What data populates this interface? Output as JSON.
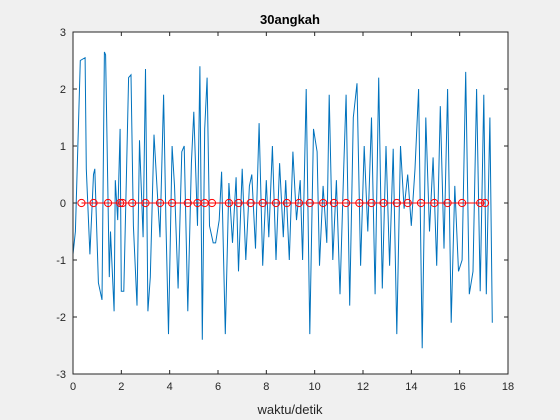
{
  "chart_data": {
    "type": "line",
    "title": "30angkah",
    "xlabel": "waktu/detik",
    "ylabel": "",
    "xlim": [
      0,
      18
    ],
    "ylim": [
      -3,
      3
    ],
    "xticks": [
      0,
      2,
      4,
      6,
      8,
      10,
      12,
      14,
      16,
      18
    ],
    "yticks": [
      -3,
      -2,
      -1,
      0,
      1,
      2,
      3
    ],
    "grid": false,
    "colors": {
      "signal": "#0072bd",
      "markers": "#ff0000",
      "axes": "#262626",
      "plot_bg": "#ffffff",
      "figure_bg": "#f0f0f0"
    },
    "series": [
      {
        "kind": "line",
        "x": [
          0,
          0.1,
          0.3,
          0.5,
          0.55,
          0.7,
          0.85,
          0.9,
          1.05,
          1.2,
          1.3,
          1.35,
          1.5,
          1.55,
          1.7,
          1.75,
          1.85,
          1.95,
          2.0,
          2.1,
          2.2,
          2.3,
          2.4,
          2.5,
          2.65,
          2.75,
          2.9,
          3.0,
          3.1,
          3.2,
          3.35,
          3.5,
          3.6,
          3.75,
          3.85,
          3.95,
          4.1,
          4.2,
          4.35,
          4.5,
          4.6,
          4.75,
          4.9,
          5.0,
          5.15,
          5.25,
          5.35,
          5.45,
          5.55,
          5.65,
          5.8,
          5.9,
          6.05,
          6.15,
          6.3,
          6.45,
          6.6,
          6.75,
          6.85,
          7.0,
          7.15,
          7.3,
          7.4,
          7.55,
          7.7,
          7.85,
          8.0,
          8.1,
          8.25,
          8.4,
          8.55,
          8.7,
          8.8,
          8.95,
          9.1,
          9.25,
          9.4,
          9.5,
          9.65,
          9.8,
          9.95,
          10.1,
          10.2,
          10.35,
          10.5,
          10.6,
          10.75,
          10.9,
          11.05,
          11.2,
          11.3,
          11.45,
          11.6,
          11.75,
          11.9,
          12.05,
          12.2,
          12.35,
          12.5,
          12.65,
          12.8,
          12.95,
          13.1,
          13.25,
          13.4,
          13.55,
          13.7,
          13.85,
          14.0,
          14.15,
          14.3,
          14.45,
          14.6,
          14.75,
          14.9,
          15.05,
          15.2,
          15.35,
          15.5,
          15.65,
          15.8,
          15.95,
          16.1,
          16.25,
          16.4,
          16.55,
          16.7,
          16.85,
          17.0,
          17.1,
          17.25,
          17.35
        ],
        "y": [
          -0.9,
          -0.5,
          2.5,
          2.55,
          0.6,
          -0.9,
          0.5,
          0.6,
          -1.4,
          -1.7,
          2.65,
          2.6,
          -1.3,
          -0.5,
          -1.9,
          0.4,
          -0.3,
          1.3,
          -1.55,
          -1.55,
          0.3,
          2.2,
          2.25,
          -0.4,
          -1.8,
          1.1,
          -0.6,
          2.35,
          -1.9,
          -1.3,
          1.2,
          0.1,
          -0.6,
          1.9,
          -0.4,
          -2.3,
          1.0,
          0.3,
          -1.5,
          0.9,
          1.0,
          -1.9,
          0.7,
          1.6,
          -0.4,
          2.4,
          -2.4,
          1.3,
          2.2,
          -0.4,
          -0.7,
          -0.7,
          -0.3,
          0.55,
          -2.3,
          0.35,
          -0.7,
          0.45,
          -1.2,
          0.6,
          -1.0,
          0.3,
          0.5,
          -0.8,
          1.4,
          -1.1,
          0.4,
          -0.6,
          1.0,
          -1.0,
          0.7,
          -0.6,
          0.4,
          -1.0,
          0.9,
          -0.3,
          0.4,
          -1.0,
          2.0,
          -2.3,
          1.3,
          0.9,
          -1.1,
          0.3,
          -0.7,
          1.9,
          -1.0,
          0.4,
          -1.6,
          0.6,
          1.9,
          -1.8,
          1.5,
          2.1,
          -1.1,
          1.0,
          -0.5,
          1.5,
          -1.6,
          2.2,
          -1.5,
          1.0,
          -1.1,
          0.95,
          -2.3,
          1.0,
          -0.1,
          0.5,
          -0.4,
          0.6,
          2.0,
          -2.55,
          1.5,
          -0.5,
          0.8,
          -1.1,
          1.7,
          -0.8,
          2.0,
          -2.1,
          0.3,
          -1.2,
          -1.0,
          2.3,
          -1.6,
          -1.2,
          2.0,
          -1.55,
          1.9,
          -1.6,
          1.5,
          -2.1
        ]
      },
      {
        "kind": "markers",
        "marker": "circle",
        "x": [
          0.35,
          0.85,
          1.45,
          1.95,
          2.05,
          2.45,
          3.0,
          3.6,
          4.1,
          4.75,
          5.15,
          5.45,
          5.75,
          6.45,
          6.85,
          7.35,
          7.85,
          8.4,
          8.85,
          9.35,
          9.8,
          10.35,
          10.8,
          11.3,
          11.85,
          12.35,
          12.85,
          13.4,
          13.85,
          14.4,
          14.95,
          15.5,
          16.1,
          16.85,
          17.05
        ],
        "y": [
          0,
          0,
          0,
          0,
          0,
          0,
          0,
          0,
          0,
          0,
          0,
          0,
          0,
          0,
          0,
          0,
          0,
          0,
          0,
          0,
          0,
          0,
          0,
          0,
          0,
          0,
          0,
          0,
          0,
          0,
          0,
          0,
          0,
          0,
          0
        ]
      }
    ]
  }
}
